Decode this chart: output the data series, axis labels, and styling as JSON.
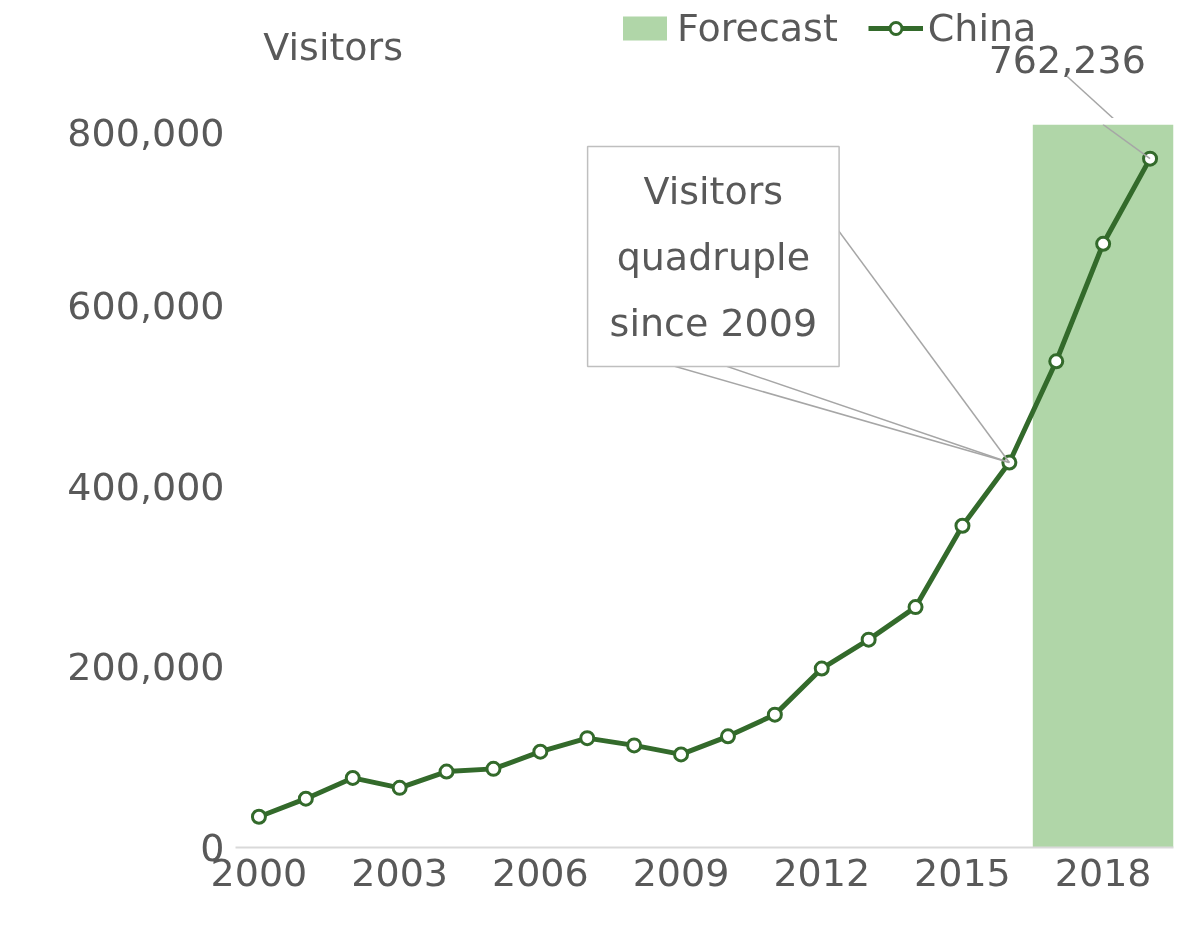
{
  "chart_data": {
    "type": "line",
    "ylabel": "Visitors",
    "x": [
      2000,
      2001,
      2002,
      2003,
      2004,
      2005,
      2006,
      2007,
      2008,
      2009,
      2010,
      2011,
      2012,
      2013,
      2014,
      2015,
      2016,
      2017,
      2018,
      2019
    ],
    "series": [
      {
        "name": "China",
        "color": "#336a2b",
        "values": [
          34000,
          54000,
          77000,
          66000,
          84000,
          87000,
          106000,
          121000,
          113000,
          103000,
          123000,
          147000,
          198000,
          230000,
          266000,
          356000,
          426000,
          538000,
          668000,
          762236
        ]
      }
    ],
    "xlim": [
      1999.5,
      2019.5
    ],
    "xticks": [
      2000,
      2003,
      2006,
      2009,
      2012,
      2015,
      2018
    ],
    "ylim": [
      0,
      800000
    ],
    "yticks": [
      {
        "value": 0,
        "label": "0"
      },
      {
        "value": 200000,
        "label": "200,000"
      },
      {
        "value": 400000,
        "label": "400,000"
      },
      {
        "value": 600000,
        "label": "600,000"
      },
      {
        "value": 800000,
        "label": "800,000"
      }
    ],
    "bands": [
      {
        "axis": "x",
        "from": 2016.5,
        "to": 2019.5,
        "label": "Forecast",
        "color": "#b0d6a8"
      }
    ],
    "annotations": [
      {
        "text": "762,236",
        "x": 2019,
        "y": 762236
      },
      {
        "text": "Visitors quadruple since 2009",
        "x": 2016,
        "y": 426000
      }
    ],
    "grid": false,
    "legend": "top",
    "marker": "circle",
    "line_style": "solid"
  }
}
